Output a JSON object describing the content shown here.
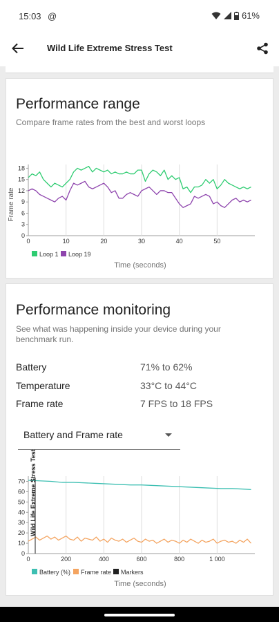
{
  "status_bar": {
    "time": "15:03",
    "at_symbol": "@",
    "battery": "61%"
  },
  "app_bar": {
    "title": "Wild Life Extreme Stress Test",
    "back_icon": "arrow-back-icon",
    "share_icon": "share-icon"
  },
  "performance_range": {
    "title": "Performance range",
    "subtitle": "Compare frame rates from the best and worst loops",
    "chart_data": {
      "type": "line",
      "ylabel": "Frame rate",
      "xlabel": "Time (seconds)",
      "xlim": [
        0,
        60
      ],
      "ylim": [
        0,
        19
      ],
      "x_ticks": [
        0,
        10,
        20,
        30,
        40,
        50
      ],
      "y_ticks": [
        0,
        3,
        6,
        9,
        12,
        15,
        18
      ],
      "grid": "vertical",
      "legend": "bottom-left",
      "series": [
        {
          "name": "Loop 1",
          "color": "#2ecc71",
          "x": [
            0,
            1,
            2,
            3,
            4,
            5,
            6,
            7,
            8,
            9,
            10,
            11,
            12,
            13,
            14,
            15,
            16,
            17,
            18,
            19,
            20,
            21,
            22,
            23,
            24,
            25,
            26,
            27,
            28,
            29,
            30,
            31,
            32,
            33,
            34,
            35,
            36,
            37,
            38,
            39,
            40,
            41,
            42,
            43,
            44,
            45,
            46,
            47,
            48,
            49,
            50,
            51,
            52,
            53,
            54,
            55,
            56,
            57,
            58,
            59
          ],
          "values": [
            15.5,
            16.5,
            16,
            17,
            15,
            14,
            13,
            14,
            13.5,
            13,
            14,
            15,
            17,
            18,
            17.5,
            18,
            18.5,
            17,
            18,
            17.5,
            17,
            17.5,
            16.5,
            17,
            16.5,
            16.5,
            17,
            16.5,
            16.5,
            17.5,
            17.5,
            14.5,
            16.5,
            17.5,
            17,
            16,
            17.5,
            15,
            16,
            15,
            15.5,
            12.5,
            13,
            11.5,
            13,
            13,
            13.5,
            15,
            14,
            15,
            12.5,
            13.5,
            15,
            14,
            13.5,
            13,
            12.5,
            13,
            12.5,
            13
          ]
        },
        {
          "name": "Loop 19",
          "color": "#8e44ad",
          "x": [
            0,
            1,
            2,
            3,
            4,
            5,
            6,
            7,
            8,
            9,
            10,
            11,
            12,
            13,
            14,
            15,
            16,
            17,
            18,
            19,
            20,
            21,
            22,
            23,
            24,
            25,
            26,
            27,
            28,
            29,
            30,
            31,
            32,
            33,
            34,
            35,
            36,
            37,
            38,
            39,
            40,
            41,
            42,
            43,
            44,
            45,
            46,
            47,
            48,
            49,
            50,
            51,
            52,
            53,
            54,
            55,
            56,
            57,
            58,
            59
          ],
          "values": [
            12,
            12.5,
            12,
            11,
            10.5,
            10,
            9.5,
            9,
            10,
            10.5,
            9.5,
            12,
            14,
            13.5,
            14,
            14.5,
            13,
            12.5,
            13,
            13.5,
            14,
            13,
            11.5,
            12,
            10,
            10,
            11,
            11.5,
            11,
            10.5,
            12,
            12.5,
            13,
            12,
            11,
            12,
            12,
            11.5,
            11.5,
            10,
            8.5,
            7.5,
            8,
            8.5,
            10.5,
            10,
            10.5,
            11,
            10.5,
            8.5,
            9,
            8,
            7.5,
            8.5,
            9.5,
            10,
            9,
            9.5,
            9,
            9.5
          ]
        }
      ]
    }
  },
  "performance_monitoring": {
    "title": "Performance monitoring",
    "subtitle_line1": "See what was happening inside your device during your",
    "subtitle_line2": "benchmark run.",
    "stats": [
      {
        "label": "Battery",
        "value": "71% to 62%"
      },
      {
        "label": "Temperature",
        "value": "33°C to 44°C"
      },
      {
        "label": "Frame rate",
        "value": "7 FPS to 18 FPS"
      }
    ],
    "dropdown": {
      "selected": "Battery and Frame rate"
    },
    "chart_data": {
      "type": "line",
      "xlabel": "Time (seconds)",
      "xlim": [
        0,
        1200
      ],
      "ylim": [
        0,
        75
      ],
      "x_ticks": [
        0,
        200,
        400,
        600,
        800,
        1000
      ],
      "x_tick_labels": [
        "0",
        "200",
        "400",
        "600",
        "800",
        "1 000"
      ],
      "y_ticks": [
        0,
        10,
        20,
        30,
        40,
        50,
        60,
        70
      ],
      "marker_label": "Wild Life Extreme Stress Test",
      "grid": "vertical",
      "legend": "bottom-left",
      "series": [
        {
          "name": "Battery (%)",
          "color": "#3dbfb2",
          "x": [
            0,
            60,
            120,
            180,
            240,
            300,
            360,
            420,
            480,
            540,
            600,
            660,
            720,
            780,
            840,
            900,
            960,
            1020,
            1080,
            1140,
            1180
          ],
          "values": [
            71,
            70.5,
            70,
            69,
            69,
            68.5,
            68,
            67.5,
            67,
            66.5,
            66.5,
            66,
            65.5,
            65,
            64.5,
            64,
            63.5,
            63,
            63,
            62.5,
            62
          ]
        },
        {
          "name": "Frame rate",
          "color": "#f4a460",
          "x": [
            0,
            20,
            40,
            60,
            80,
            100,
            120,
            140,
            160,
            180,
            200,
            220,
            240,
            260,
            280,
            300,
            320,
            340,
            360,
            380,
            400,
            420,
            440,
            460,
            480,
            500,
            520,
            540,
            560,
            580,
            600,
            620,
            640,
            660,
            680,
            700,
            720,
            740,
            760,
            780,
            800,
            820,
            840,
            860,
            880,
            900,
            920,
            940,
            960,
            980,
            1000,
            1020,
            1040,
            1060,
            1080,
            1100,
            1120,
            1140,
            1160,
            1180
          ],
          "values": [
            12,
            14,
            16,
            13,
            15,
            17,
            14,
            16,
            13,
            15,
            17,
            14,
            13,
            16,
            12,
            15,
            14,
            13,
            16,
            12,
            14,
            11,
            15,
            13,
            12,
            14,
            11,
            13,
            15,
            12,
            11,
            14,
            12,
            13,
            10,
            12,
            14,
            11,
            13,
            12,
            10,
            13,
            11,
            14,
            12,
            10,
            13,
            11,
            12,
            14,
            10,
            12,
            13,
            11,
            12,
            10,
            13,
            11,
            14,
            10
          ]
        },
        {
          "name": "Markers",
          "color": "#212121"
        }
      ]
    }
  },
  "colors": {
    "card_bg": "#ffffff",
    "page_bg": "#ececec",
    "loop1": "#2ecc71",
    "loop19": "#8e44ad",
    "battery": "#3dbfb2",
    "framerate": "#f4a460"
  }
}
